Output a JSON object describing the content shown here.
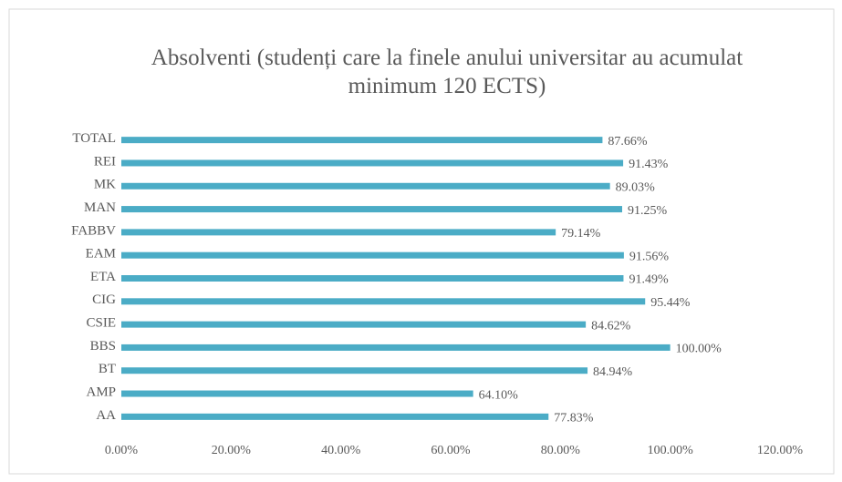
{
  "chart_data": {
    "type": "bar",
    "orientation": "horizontal",
    "title": "Absolventi (studenți care la finele anului universitar au acumulat minimum 120 ECTS)",
    "categories": [
      "TOTAL",
      "REI",
      "MK",
      "MAN",
      "FABBV",
      "EAM",
      "ETA",
      "CIG",
      "CSIE",
      "BBS",
      "BT",
      "AMP",
      "AA"
    ],
    "values": [
      87.66,
      91.43,
      89.03,
      91.25,
      79.14,
      91.56,
      91.49,
      95.44,
      84.62,
      100.0,
      84.94,
      64.1,
      77.83
    ],
    "value_labels": [
      "87.66%",
      "91.43%",
      "89.03%",
      "91.25%",
      "79.14%",
      "91.56%",
      "91.49%",
      "95.44%",
      "84.62%",
      "100.00%",
      "84.94%",
      "64.10%",
      "77.83%"
    ],
    "color": "#4bacc6",
    "xlim": [
      0,
      120
    ],
    "xticks": [
      {
        "value": 0,
        "label": "0.00%"
      },
      {
        "value": 20,
        "label": "20.00%"
      },
      {
        "value": 40,
        "label": "40.00%"
      },
      {
        "value": 60,
        "label": "60.00%"
      },
      {
        "value": 80,
        "label": "80.00%"
      },
      {
        "value": 100,
        "label": "100.00%"
      },
      {
        "value": 120,
        "label": "120.00%"
      }
    ],
    "grid": false
  }
}
